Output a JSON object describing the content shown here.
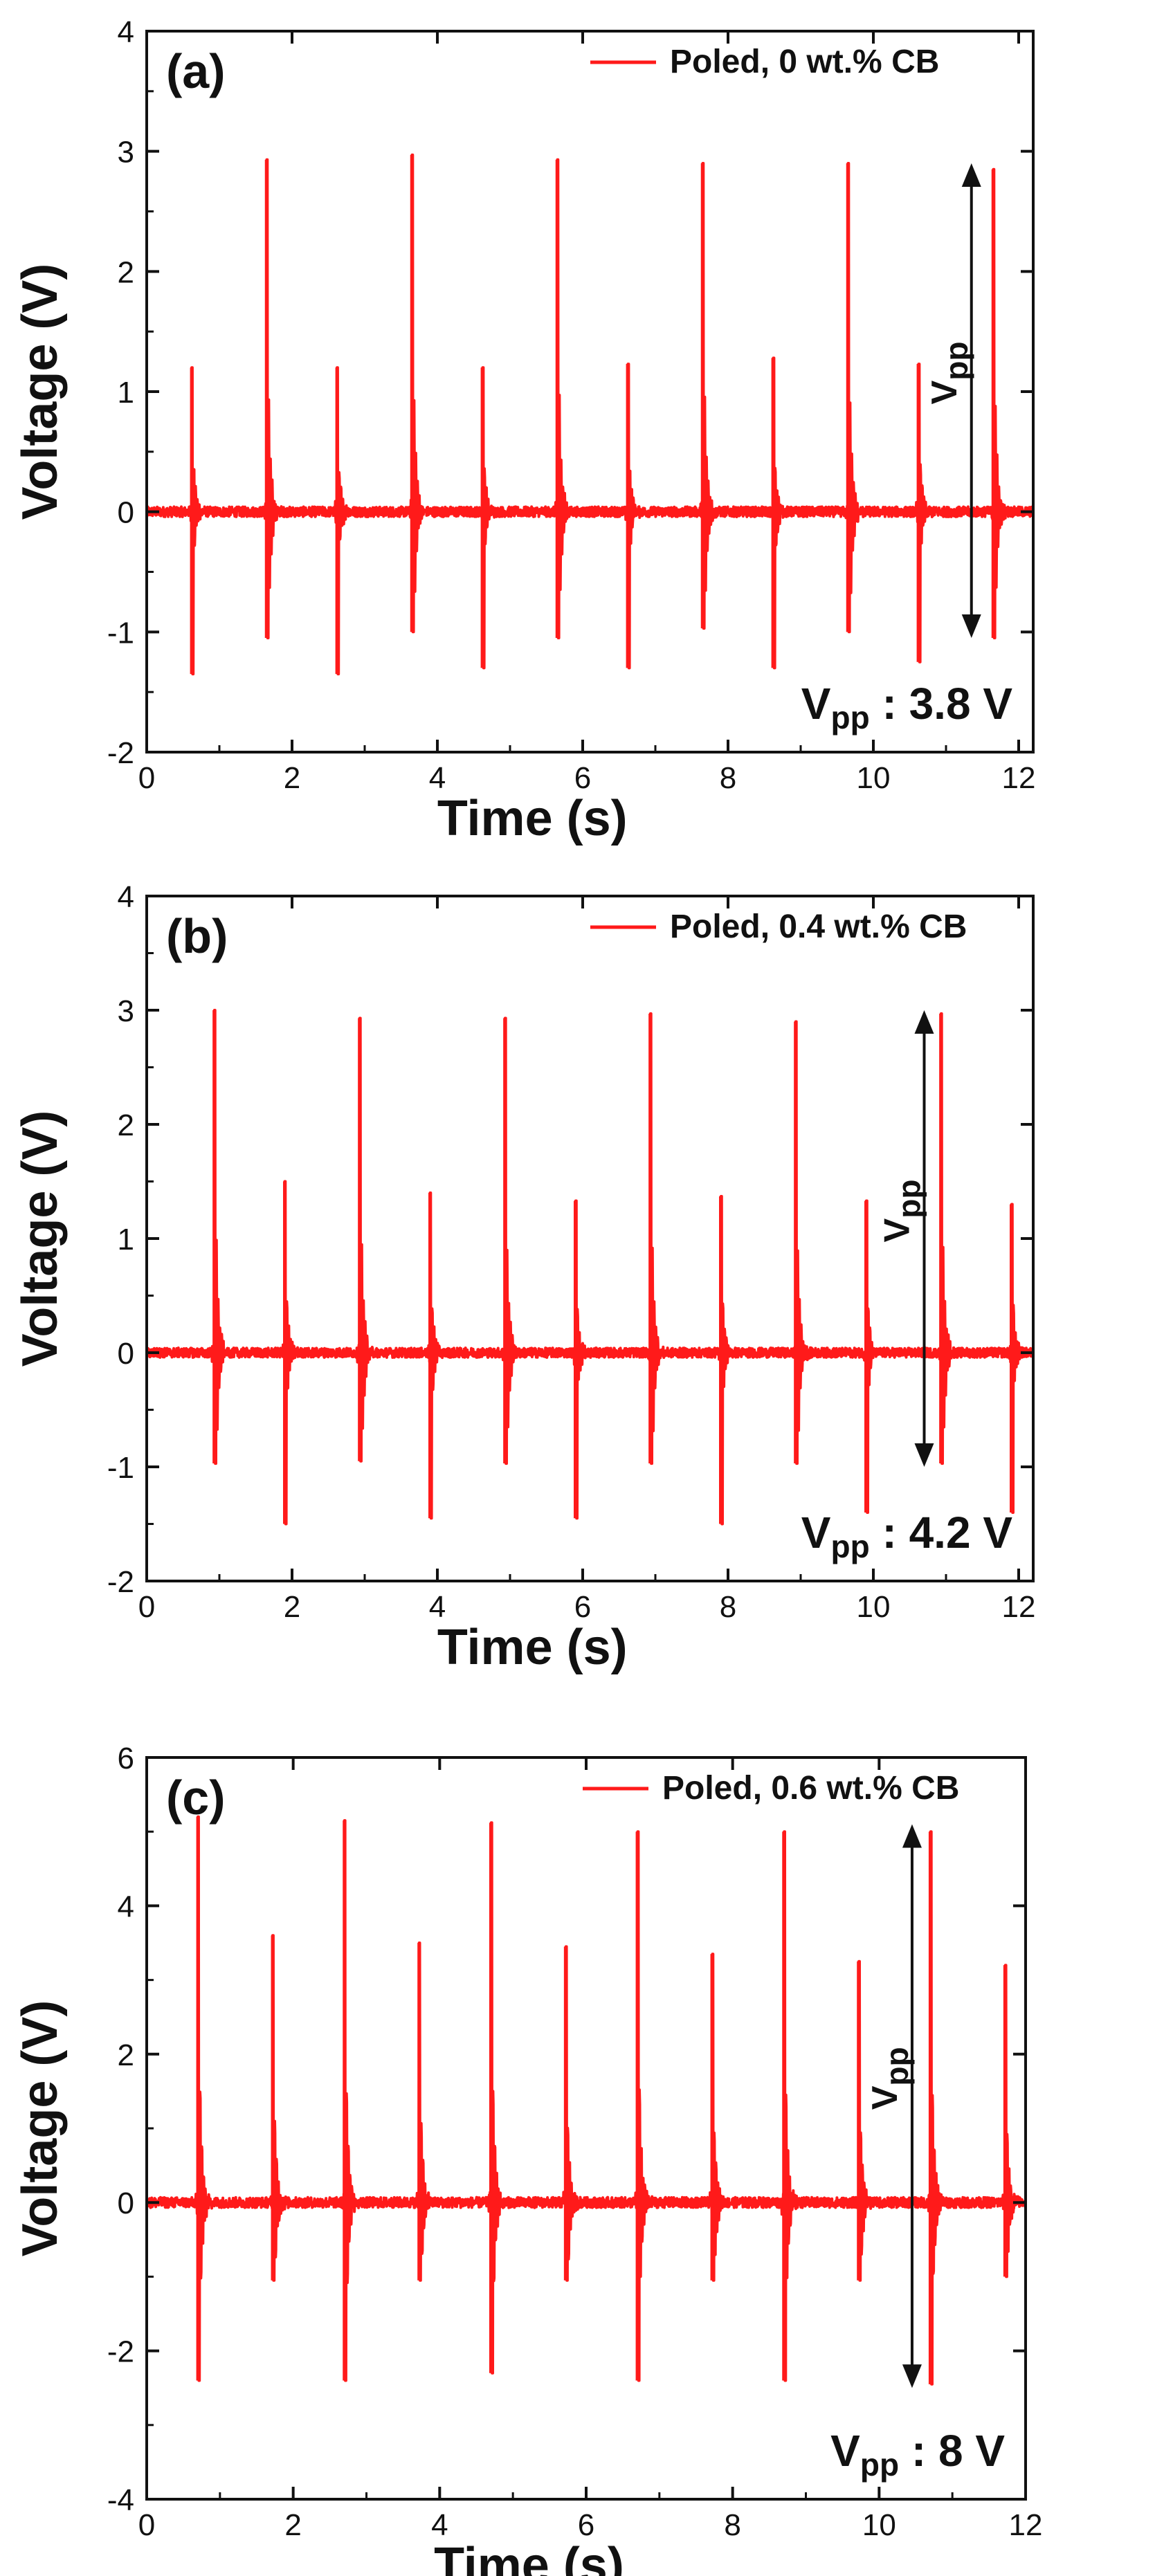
{
  "chart_data": [
    {
      "type": "line",
      "panel_label": "(a)",
      "legend": "Poled, 0 wt.% CB",
      "color": "#ff1a1a",
      "xlabel": "Time (s)",
      "ylabel": "Voltage (V)",
      "xlim": [
        0,
        12.2
      ],
      "ylim": [
        -2,
        4
      ],
      "xticks": [
        "0",
        "2",
        "4",
        "6",
        "8",
        "10",
        "12"
      ],
      "yticks": [
        "-2",
        "-1",
        "0",
        "1",
        "2",
        "3",
        "4"
      ],
      "baseline": 0.0,
      "pulses": [
        {
          "t": 0.62,
          "max": 1.2,
          "min": -1.35
        },
        {
          "t": 1.65,
          "max": 2.93,
          "min": -1.05
        },
        {
          "t": 2.62,
          "max": 1.2,
          "min": -1.35
        },
        {
          "t": 3.65,
          "max": 2.97,
          "min": -1.0
        },
        {
          "t": 4.62,
          "max": 1.2,
          "min": -1.3
        },
        {
          "t": 5.65,
          "max": 2.93,
          "min": -1.05
        },
        {
          "t": 6.62,
          "max": 1.23,
          "min": -1.3
        },
        {
          "t": 7.65,
          "max": 2.9,
          "min": -0.97
        },
        {
          "t": 8.62,
          "max": 1.28,
          "min": -1.3
        },
        {
          "t": 9.65,
          "max": 2.9,
          "min": -1.0
        },
        {
          "t": 10.62,
          "max": 1.23,
          "min": -1.25
        },
        {
          "t": 11.65,
          "max": 2.85,
          "min": -1.05
        }
      ],
      "arrow": {
        "x": 11.35,
        "top": 2.9,
        "bottom": -1.05
      },
      "vpp_side_label": {
        "main": "V",
        "sub": "pp"
      },
      "vpp_annotation": {
        "main": "V",
        "sub": "pp",
        "rest": " : 3.8 V"
      }
    },
    {
      "type": "line",
      "panel_label": "(b)",
      "legend": "Poled, 0.4 wt.% CB",
      "color": "#ff1a1a",
      "xlabel": "Time (s)",
      "ylabel": "Voltage (V)",
      "xlim": [
        0,
        12.2
      ],
      "ylim": [
        -2,
        4
      ],
      "xticks": [
        "0",
        "2",
        "4",
        "6",
        "8",
        "10",
        "12"
      ],
      "yticks": [
        "-2",
        "-1",
        "0",
        "1",
        "2",
        "3",
        "4"
      ],
      "baseline": 0.0,
      "pulses": [
        {
          "t": 0.93,
          "max": 3.0,
          "min": -0.97
        },
        {
          "t": 1.9,
          "max": 1.5,
          "min": -1.5
        },
        {
          "t": 2.93,
          "max": 2.93,
          "min": -0.95
        },
        {
          "t": 3.9,
          "max": 1.4,
          "min": -1.45
        },
        {
          "t": 4.93,
          "max": 2.93,
          "min": -0.97
        },
        {
          "t": 5.9,
          "max": 1.33,
          "min": -1.45
        },
        {
          "t": 6.93,
          "max": 2.97,
          "min": -0.97
        },
        {
          "t": 7.9,
          "max": 1.37,
          "min": -1.5
        },
        {
          "t": 8.93,
          "max": 2.9,
          "min": -0.97
        },
        {
          "t": 9.9,
          "max": 1.33,
          "min": -1.4
        },
        {
          "t": 10.93,
          "max": 2.97,
          "min": -0.97
        },
        {
          "t": 11.9,
          "max": 1.3,
          "min": -1.4
        }
      ],
      "arrow": {
        "x": 10.7,
        "top": 3.0,
        "bottom": -1.0
      },
      "vpp_side_label": {
        "main": "V",
        "sub": "pp"
      },
      "vpp_annotation": {
        "main": "V",
        "sub": "pp",
        "rest": " : 4.2 V"
      }
    },
    {
      "type": "line",
      "panel_label": "(c)",
      "legend": "Poled, 0.6 wt.% CB",
      "color": "#ff1a1a",
      "xlabel": "Time (s)",
      "ylabel": "Voltage (V)",
      "xlim": [
        0,
        12
      ],
      "ylim": [
        -4,
        6
      ],
      "xticks": [
        "0",
        "2",
        "4",
        "6",
        "8",
        "10",
        "12"
      ],
      "yticks": [
        "-4",
        "-2",
        "0",
        "2",
        "4",
        "6"
      ],
      "baseline": 0.0,
      "pulses": [
        {
          "t": 0.7,
          "max": 5.2,
          "min": -2.4
        },
        {
          "t": 1.72,
          "max": 3.6,
          "min": -1.05
        },
        {
          "t": 2.7,
          "max": 5.15,
          "min": -2.4
        },
        {
          "t": 3.72,
          "max": 3.5,
          "min": -1.05
        },
        {
          "t": 4.7,
          "max": 5.12,
          "min": -2.3
        },
        {
          "t": 5.72,
          "max": 3.45,
          "min": -1.05
        },
        {
          "t": 6.7,
          "max": 5.0,
          "min": -2.4
        },
        {
          "t": 7.72,
          "max": 3.35,
          "min": -1.05
        },
        {
          "t": 8.7,
          "max": 5.0,
          "min": -2.4
        },
        {
          "t": 9.72,
          "max": 3.25,
          "min": -1.05
        },
        {
          "t": 10.7,
          "max": 5.0,
          "min": -2.45
        },
        {
          "t": 11.72,
          "max": 3.2,
          "min": -1.0
        }
      ],
      "arrow": {
        "x": 10.45,
        "top": 5.1,
        "bottom": -2.5
      },
      "vpp_side_label": {
        "main": "V",
        "sub": "pp"
      },
      "vpp_annotation": {
        "main": "V",
        "sub": "pp",
        "rest": " : 8 V"
      }
    }
  ]
}
